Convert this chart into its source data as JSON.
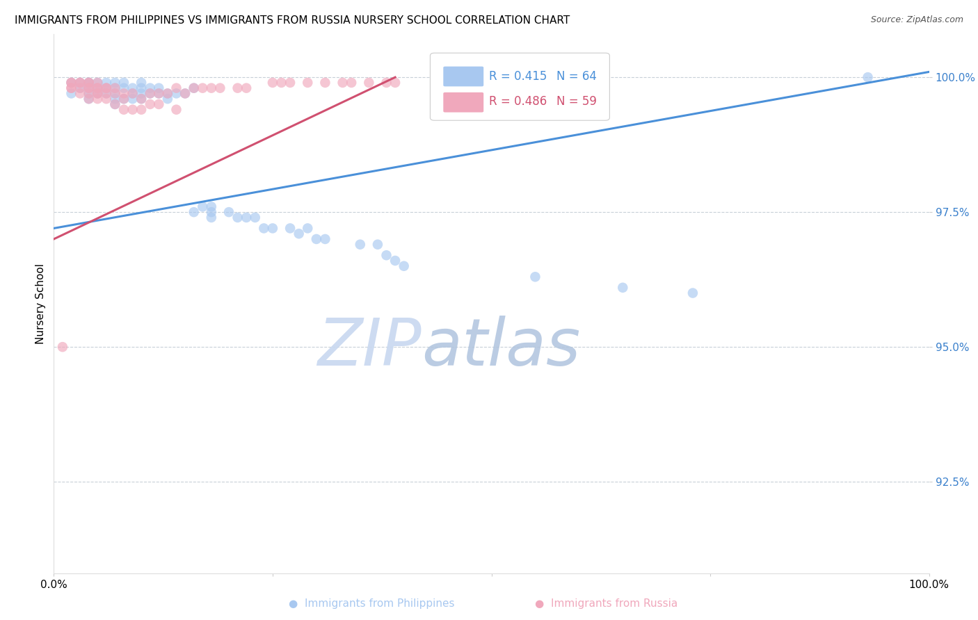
{
  "title": "IMMIGRANTS FROM PHILIPPINES VS IMMIGRANTS FROM RUSSIA NURSERY SCHOOL CORRELATION CHART",
  "source": "Source: ZipAtlas.com",
  "ylabel": "Nursery School",
  "ytick_labels": [
    "92.5%",
    "95.0%",
    "97.5%",
    "100.0%"
  ],
  "ytick_values": [
    0.925,
    0.95,
    0.975,
    1.0
  ],
  "xlim": [
    0.0,
    1.0
  ],
  "ylim": [
    0.908,
    1.008
  ],
  "series1_color": "#a8c8f0",
  "series2_color": "#f0a8bc",
  "trendline1_color": "#4a90d9",
  "trendline2_color": "#d05070",
  "watermark_zip_color": "#c8d8ee",
  "watermark_atlas_color": "#b8c8de",
  "background_color": "#ffffff",
  "grid_color": "#c8d0d8",
  "series1_x": [
    0.02,
    0.02,
    0.03,
    0.03,
    0.04,
    0.04,
    0.04,
    0.04,
    0.04,
    0.05,
    0.05,
    0.05,
    0.06,
    0.06,
    0.06,
    0.07,
    0.07,
    0.07,
    0.07,
    0.07,
    0.08,
    0.08,
    0.08,
    0.09,
    0.09,
    0.09,
    0.1,
    0.1,
    0.1,
    0.1,
    0.11,
    0.11,
    0.12,
    0.12,
    0.13,
    0.13,
    0.14,
    0.15,
    0.16,
    0.16,
    0.17,
    0.18,
    0.18,
    0.18,
    0.2,
    0.21,
    0.22,
    0.23,
    0.24,
    0.25,
    0.27,
    0.28,
    0.29,
    0.3,
    0.31,
    0.35,
    0.37,
    0.38,
    0.39,
    0.4,
    0.55,
    0.65,
    0.73,
    0.93
  ],
  "series1_y": [
    0.999,
    0.997,
    0.999,
    0.998,
    0.999,
    0.999,
    0.998,
    0.997,
    0.996,
    0.999,
    0.998,
    0.997,
    0.999,
    0.998,
    0.997,
    0.999,
    0.998,
    0.997,
    0.996,
    0.995,
    0.999,
    0.998,
    0.996,
    0.998,
    0.997,
    0.996,
    0.999,
    0.998,
    0.997,
    0.996,
    0.998,
    0.997,
    0.998,
    0.997,
    0.997,
    0.996,
    0.997,
    0.997,
    0.998,
    0.975,
    0.976,
    0.976,
    0.975,
    0.974,
    0.975,
    0.974,
    0.974,
    0.974,
    0.972,
    0.972,
    0.972,
    0.971,
    0.972,
    0.97,
    0.97,
    0.969,
    0.969,
    0.967,
    0.966,
    0.965,
    0.963,
    0.961,
    0.96,
    1.0
  ],
  "series2_x": [
    0.01,
    0.02,
    0.02,
    0.02,
    0.02,
    0.03,
    0.03,
    0.03,
    0.03,
    0.04,
    0.04,
    0.04,
    0.04,
    0.04,
    0.04,
    0.05,
    0.05,
    0.05,
    0.05,
    0.05,
    0.05,
    0.06,
    0.06,
    0.06,
    0.06,
    0.07,
    0.07,
    0.07,
    0.08,
    0.08,
    0.08,
    0.09,
    0.09,
    0.1,
    0.1,
    0.11,
    0.11,
    0.12,
    0.12,
    0.13,
    0.14,
    0.14,
    0.15,
    0.16,
    0.17,
    0.18,
    0.19,
    0.21,
    0.22,
    0.25,
    0.26,
    0.27,
    0.29,
    0.31,
    0.33,
    0.34,
    0.36,
    0.38,
    0.39
  ],
  "series2_y": [
    0.95,
    0.999,
    0.999,
    0.998,
    0.998,
    0.999,
    0.999,
    0.998,
    0.997,
    0.999,
    0.999,
    0.998,
    0.998,
    0.997,
    0.996,
    0.999,
    0.998,
    0.998,
    0.997,
    0.997,
    0.996,
    0.998,
    0.998,
    0.997,
    0.996,
    0.998,
    0.997,
    0.995,
    0.997,
    0.996,
    0.994,
    0.997,
    0.994,
    0.996,
    0.994,
    0.997,
    0.995,
    0.997,
    0.995,
    0.997,
    0.998,
    0.994,
    0.997,
    0.998,
    0.998,
    0.998,
    0.998,
    0.998,
    0.998,
    0.999,
    0.999,
    0.999,
    0.999,
    0.999,
    0.999,
    0.999,
    0.999,
    0.999,
    0.999
  ],
  "trendline1_x": [
    0.0,
    1.0
  ],
  "trendline1_y": [
    0.972,
    1.001
  ],
  "trendline2_x": [
    0.0,
    0.39
  ],
  "trendline2_y": [
    0.97,
    1.0
  ],
  "legend_r1": "R = 0.415",
  "legend_n1": "N = 64",
  "legend_r2": "R = 0.486",
  "legend_n2": "N = 59",
  "legend_color1": "#4a90d9",
  "legend_color2": "#d05070",
  "bottom_label1": "Immigrants from Philippines",
  "bottom_label2": "Immigrants from Russia",
  "title_fontsize": 11,
  "axis_fontsize": 11,
  "tick_fontsize": 11
}
